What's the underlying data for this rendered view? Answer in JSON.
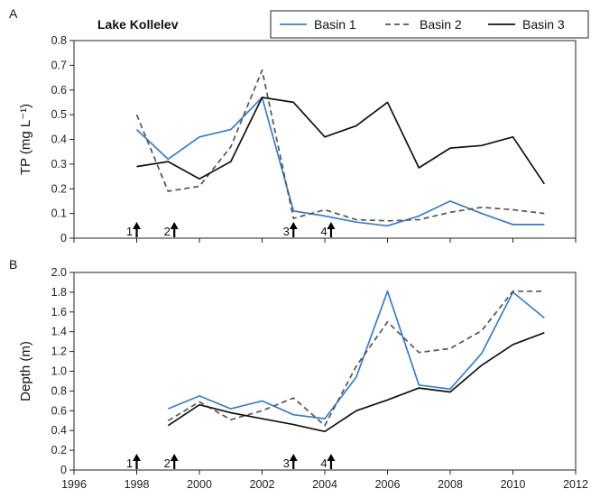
{
  "figure": {
    "title": "Lake Kollelev",
    "x_ticks": [
      "1996",
      "1998",
      "2000",
      "2002",
      "2004",
      "2006",
      "2008",
      "2010",
      "2012"
    ]
  },
  "legend": [
    {
      "name": "Basin 1",
      "color": "#3b7dc4",
      "dash": "solid"
    },
    {
      "name": "Basin 2",
      "color": "#555555",
      "dash": "dashed"
    },
    {
      "name": "Basin 3",
      "color": "#111111",
      "dash": "solid"
    }
  ],
  "chart_data": [
    {
      "type": "line",
      "panel_label": "A",
      "ylabel": "TP (mg L⁻¹)",
      "xlim": [
        1996,
        2012
      ],
      "ylim": [
        0,
        0.8
      ],
      "y_ticks": [
        "0",
        "0.1",
        "0.2",
        "0.3",
        "0.4",
        "0.5",
        "0.6",
        "0.7",
        "0.8"
      ],
      "series": [
        {
          "name": "Basin 1",
          "x": [
            1998,
            1999,
            2000,
            2001,
            2002,
            2003,
            2004,
            2005,
            2006,
            2007,
            2008,
            2009,
            2010,
            2011
          ],
          "values": [
            0.44,
            0.32,
            0.41,
            0.44,
            0.57,
            0.11,
            0.09,
            0.065,
            0.05,
            0.09,
            0.15,
            0.1,
            0.055,
            0.055
          ]
        },
        {
          "name": "Basin 2",
          "x": [
            1998,
            1999,
            2000,
            2001,
            2002,
            2003,
            2004,
            2005,
            2006,
            2007,
            2008,
            2009,
            2010,
            2011
          ],
          "values": [
            0.5,
            0.19,
            0.21,
            0.37,
            0.68,
            0.08,
            0.115,
            0.075,
            0.07,
            0.075,
            0.105,
            0.125,
            0.115,
            0.1
          ]
        },
        {
          "name": "Basin 3",
          "x": [
            1998,
            1999,
            2000,
            2001,
            2002,
            2003,
            2004,
            2005,
            2006,
            2007,
            2008,
            2009,
            2010,
            2011
          ],
          "values": [
            0.29,
            0.31,
            0.24,
            0.31,
            0.57,
            0.55,
            0.41,
            0.455,
            0.55,
            0.285,
            0.365,
            0.375,
            0.41,
            0.22
          ]
        }
      ],
      "annotations": [
        {
          "label": "1",
          "x": 1998
        },
        {
          "label": "2",
          "x": 1999.2
        },
        {
          "label": "3",
          "x": 2003
        },
        {
          "label": "4",
          "x": 2004.2
        }
      ]
    },
    {
      "type": "line",
      "panel_label": "B",
      "ylabel": "Depth (m)",
      "xlim": [
        1996,
        2012
      ],
      "ylim": [
        0,
        2.0
      ],
      "y_ticks": [
        "0",
        "0.2",
        "0.4",
        "0.6",
        "0.8",
        "1.0",
        "1.2",
        "1.4",
        "1.6",
        "1.8",
        "2.0"
      ],
      "series": [
        {
          "name": "Basin 1",
          "x": [
            1999,
            2000,
            2001,
            2002,
            2003,
            2004,
            2005,
            2006,
            2007,
            2008,
            2009,
            2010,
            2011
          ],
          "values": [
            0.62,
            0.75,
            0.62,
            0.7,
            0.56,
            0.52,
            0.94,
            1.81,
            0.86,
            0.82,
            1.18,
            1.8,
            1.54
          ]
        },
        {
          "name": "Basin 2",
          "x": [
            1999,
            2000,
            2001,
            2002,
            2003,
            2004,
            2005,
            2006,
            2007,
            2008,
            2009,
            2010,
            2011
          ],
          "values": [
            0.5,
            0.69,
            0.51,
            0.6,
            0.73,
            0.45,
            1.05,
            1.5,
            1.19,
            1.23,
            1.41,
            1.81,
            1.81
          ]
        },
        {
          "name": "Basin 3",
          "x": [
            1999,
            2000,
            2001,
            2002,
            2003,
            2004,
            2005,
            2006,
            2007,
            2008,
            2009,
            2010,
            2011
          ],
          "values": [
            0.45,
            0.66,
            0.58,
            0.52,
            0.46,
            0.39,
            0.6,
            0.71,
            0.83,
            0.79,
            1.06,
            1.27,
            1.39
          ]
        }
      ],
      "annotations": [
        {
          "label": "1",
          "x": 1998
        },
        {
          "label": "2",
          "x": 1999.2
        },
        {
          "label": "3",
          "x": 2003
        },
        {
          "label": "4",
          "x": 2004.2
        }
      ]
    }
  ]
}
